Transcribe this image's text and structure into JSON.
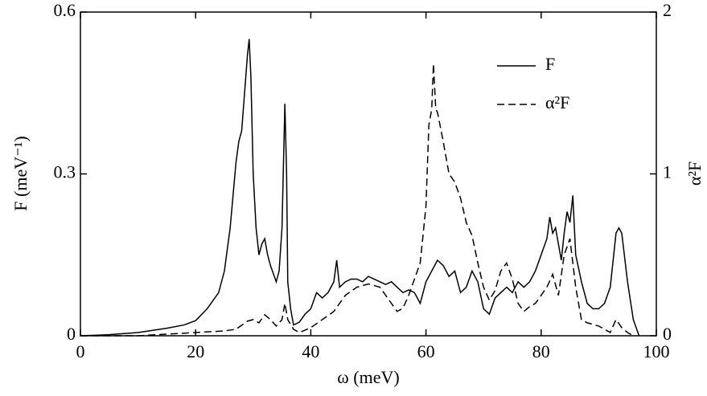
{
  "chart_data": {
    "type": "line",
    "xlabel": "ω (meV)",
    "ylabel": "F (meV⁻¹)",
    "y2label": "α²F",
    "xlim": [
      0,
      100
    ],
    "xticks": [
      0,
      20,
      40,
      60,
      80,
      100
    ],
    "ylim": [
      0,
      0.6
    ],
    "yticks": [
      0,
      0.3,
      0.6
    ],
    "y2lim": [
      0,
      2
    ],
    "y2ticks": [
      0,
      1,
      2
    ],
    "legend": "upper right",
    "series": [
      {
        "name": "F",
        "color": "#000000",
        "dash": "solid",
        "x": [
          0,
          5,
          10,
          15,
          18,
          20,
          22,
          24,
          25,
          26,
          27,
          27.5,
          28,
          28.5,
          29,
          29.3,
          29.6,
          30,
          30.5,
          31,
          31.5,
          32,
          32.5,
          33,
          34,
          34.5,
          35,
          35.5,
          35.8,
          36,
          36.5,
          37,
          38,
          39,
          40,
          41,
          42,
          43,
          44,
          44.5,
          45,
          46,
          47,
          48,
          49,
          50,
          51,
          52,
          53,
          54,
          55,
          56,
          57,
          58,
          59,
          60,
          61,
          62,
          63,
          64,
          65,
          66,
          67,
          68,
          69,
          70,
          71,
          72,
          73,
          74,
          75,
          76,
          77,
          78,
          79,
          80,
          81,
          81.5,
          82,
          82.5,
          83,
          83.5,
          84,
          84.5,
          85,
          85.5,
          86,
          87,
          88,
          89,
          90,
          91,
          92,
          93,
          93.5,
          94,
          95,
          96,
          97
        ],
        "values": [
          0,
          0.002,
          0.006,
          0.014,
          0.02,
          0.028,
          0.05,
          0.08,
          0.12,
          0.2,
          0.32,
          0.36,
          0.38,
          0.45,
          0.52,
          0.55,
          0.48,
          0.3,
          0.2,
          0.15,
          0.17,
          0.18,
          0.15,
          0.13,
          0.1,
          0.12,
          0.2,
          0.43,
          0.3,
          0.1,
          0.05,
          0.02,
          0.025,
          0.04,
          0.05,
          0.08,
          0.07,
          0.08,
          0.1,
          0.14,
          0.09,
          0.1,
          0.105,
          0.105,
          0.1,
          0.11,
          0.105,
          0.1,
          0.095,
          0.1,
          0.09,
          0.08,
          0.085,
          0.08,
          0.06,
          0.1,
          0.12,
          0.14,
          0.13,
          0.11,
          0.12,
          0.08,
          0.09,
          0.12,
          0.1,
          0.05,
          0.04,
          0.07,
          0.08,
          0.09,
          0.08,
          0.1,
          0.09,
          0.1,
          0.12,
          0.15,
          0.18,
          0.22,
          0.19,
          0.2,
          0.17,
          0.14,
          0.19,
          0.23,
          0.21,
          0.26,
          0.15,
          0.1,
          0.06,
          0.05,
          0.05,
          0.06,
          0.09,
          0.19,
          0.2,
          0.19,
          0.1,
          0.03,
          0
        ]
      },
      {
        "name": "α²F",
        "color": "#000000",
        "dash": "dashed",
        "axis": "y2",
        "x": [
          0,
          10,
          20,
          25,
          27,
          29,
          30,
          31,
          32,
          33,
          34,
          35,
          35.5,
          36,
          37,
          38,
          40,
          42,
          44,
          46,
          48,
          50,
          52,
          54,
          55,
          56,
          57,
          58,
          59,
          60,
          60.5,
          61,
          61.3,
          61.7,
          62,
          63,
          64,
          65,
          66,
          67,
          68,
          69,
          70,
          71,
          72,
          73,
          74,
          75,
          76,
          77,
          78,
          79,
          80,
          81,
          82,
          83,
          84,
          85,
          86,
          87,
          88,
          90,
          92,
          93,
          94,
          95,
          96
        ],
        "values": [
          0,
          0,
          0.02,
          0.03,
          0.04,
          0.09,
          0.1,
          0.08,
          0.13,
          0.1,
          0.06,
          0.1,
          0.2,
          0.1,
          0.04,
          0.02,
          0.05,
          0.1,
          0.15,
          0.25,
          0.3,
          0.32,
          0.3,
          0.2,
          0.15,
          0.17,
          0.25,
          0.35,
          0.45,
          0.8,
          1.3,
          1.4,
          1.68,
          1.4,
          1.38,
          1.2,
          1.0,
          0.95,
          0.85,
          0.7,
          0.62,
          0.45,
          0.3,
          0.22,
          0.28,
          0.4,
          0.45,
          0.35,
          0.2,
          0.15,
          0.18,
          0.2,
          0.25,
          0.3,
          0.38,
          0.25,
          0.5,
          0.6,
          0.3,
          0.1,
          0.08,
          0.06,
          0.02,
          0.1,
          0.05,
          0.02,
          0
        ]
      }
    ]
  }
}
